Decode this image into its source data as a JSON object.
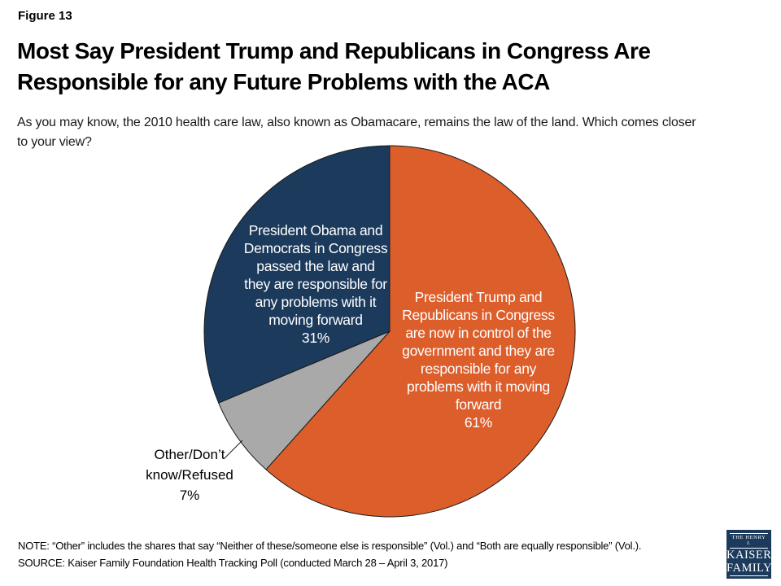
{
  "slide": {
    "figure_label": "Figure 13",
    "title_lines": [
      "Most Say President Trump and Republicans in Congress Are",
      "Responsible for any Future Problems with the ACA"
    ],
    "subtitle_lines": [
      "As you may know, the 2010 health care law, also known as Obamacare, remains the law of the land. Which comes closer",
      "to your view?"
    ],
    "note": "NOTE: “Other” includes the shares that say “Neither of these/someone else is responsible” (Vol.) and “Both are equally responsible” (Vol.).",
    "source": "SOURCE: Kaiser Family Foundation Health Tracking Poll (conducted March 28 – April 3, 2017)"
  },
  "chart_data": {
    "type": "pie",
    "start_angle_deg": 0,
    "direction": "clockwise",
    "stroke_color": "#1a1a1a",
    "background": "#ffffff",
    "slices": [
      {
        "name": "trump-republicans-responsible",
        "value": 61,
        "color": "#DC5E2B",
        "label_color": "#FFFFFF",
        "label_lines": [
          "President Trump and",
          "Republicans in Congress",
          "are now in control of the",
          "government and they are",
          "responsible for any",
          "problems with it moving",
          "forward",
          "61%"
        ]
      },
      {
        "name": "other-dont-know-refused",
        "value": 7,
        "color": "#A9A9A9",
        "label_color": "#000000",
        "label_lines": [
          "Other/Don’t",
          "know/Refused",
          "7%"
        ]
      },
      {
        "name": "obama-democrats-responsible",
        "value": 31,
        "color": "#1B3A5C",
        "label_color": "#FFFFFF",
        "label_lines": [
          "President Obama and",
          "Democrats in Congress",
          "passed the law and",
          "they are responsible for",
          "any problems with it",
          "moving forward",
          "31%"
        ]
      }
    ]
  },
  "logo": {
    "top_text": "THE HENRY J.",
    "name_line1": "KAISER",
    "name_line2": "FAMILY",
    "bottom_text": "FOUNDATION",
    "bg_color": "#1B3A5C"
  }
}
